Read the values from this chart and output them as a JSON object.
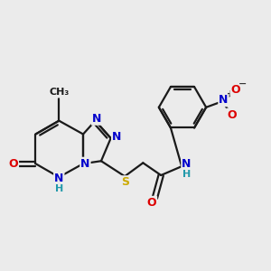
{
  "bg_color": "#ebebeb",
  "bond_color": "#1a1a1a",
  "bond_width": 1.6,
  "atom_colors": {
    "N": "#0000cc",
    "O": "#dd0000",
    "S": "#ccaa00",
    "H": "#2299aa",
    "C": "#1a1a1a"
  },
  "figsize": [
    3.0,
    3.0
  ],
  "dpi": 100
}
